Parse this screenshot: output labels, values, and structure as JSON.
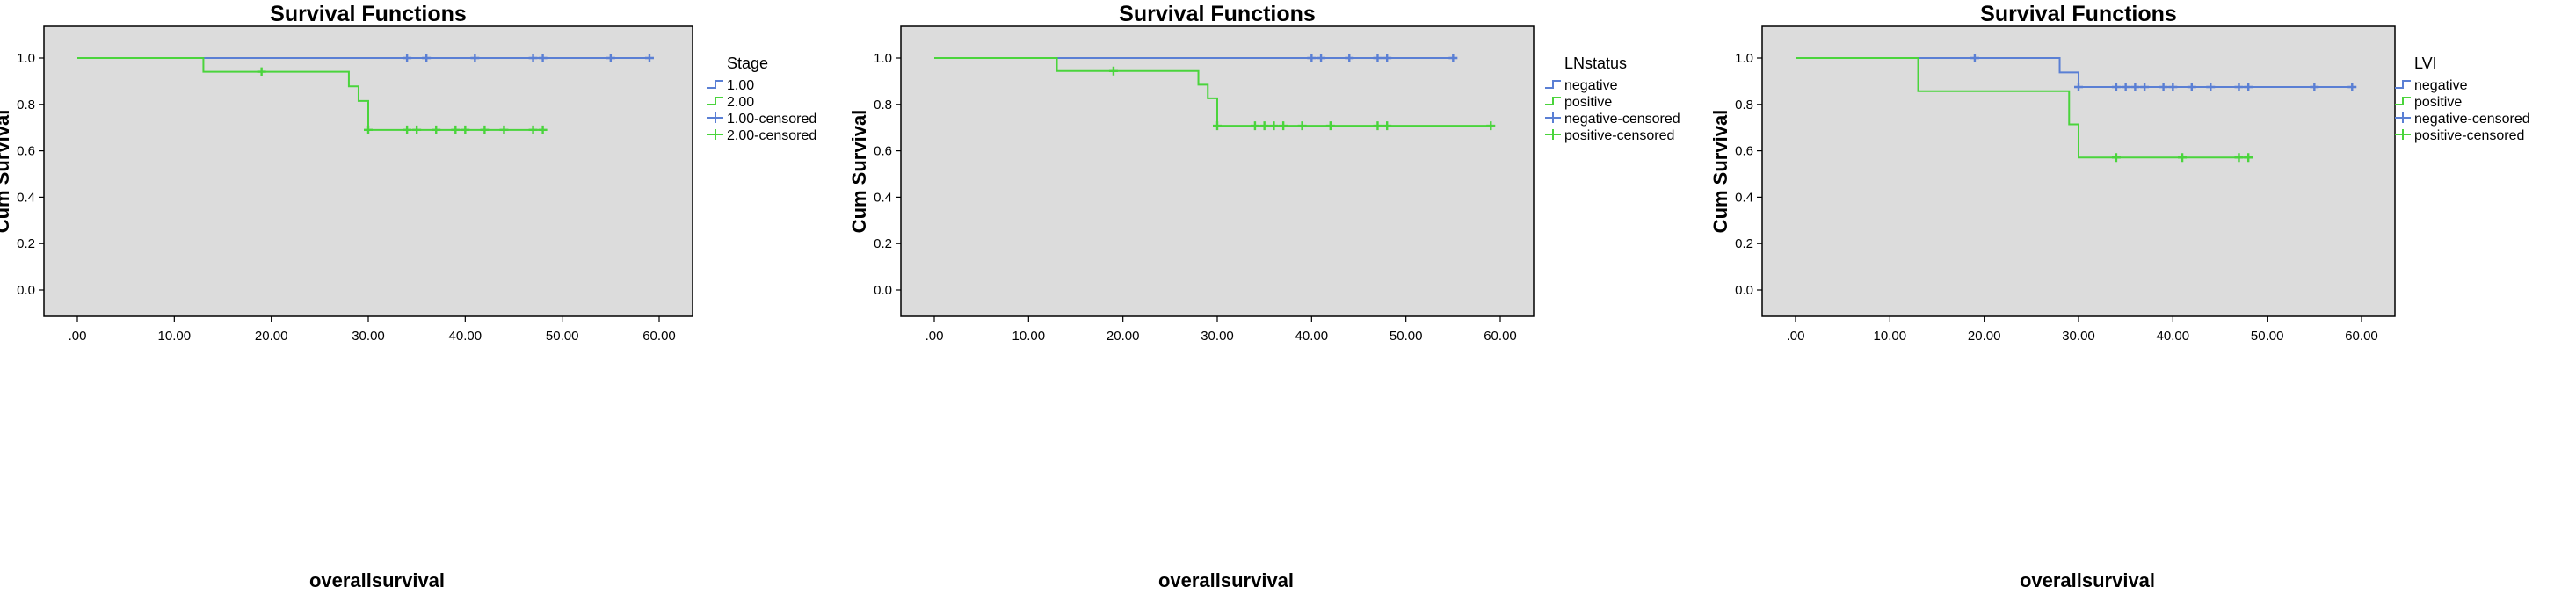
{
  "colors": {
    "plot_background": "#dcdcdc",
    "series_1": "#5a7fd4",
    "series_2": "#4ad43c",
    "axis": "#000000"
  },
  "chart_data": [
    {
      "type": "line",
      "title": "Survival Functions",
      "xlabel": "overallsurvival",
      "ylabel": "Cum Survival",
      "xlim": [
        0,
        60
      ],
      "ylim": [
        0,
        1
      ],
      "x_tick_labels": [
        ".00",
        "10.00",
        "20.00",
        "30.00",
        "40.00",
        "50.00",
        "60.00"
      ],
      "y_tick_labels": [
        "0.0",
        "0.2",
        "0.4",
        "0.6",
        "0.8",
        "1.0"
      ],
      "grid": false,
      "step": true,
      "legend_title": "Stage",
      "legend_position": "right",
      "legend": [
        {
          "label": "1.00",
          "series": 0,
          "kind": "line"
        },
        {
          "label": "2.00",
          "series": 1,
          "kind": "line"
        },
        {
          "label": "1.00-censored",
          "series": 0,
          "kind": "censored"
        },
        {
          "label": "2.00-censored",
          "series": 1,
          "kind": "censored"
        }
      ],
      "series": [
        {
          "x": [
            0,
            59
          ],
          "y": [
            1.0,
            1.0
          ],
          "censored": [
            34,
            36,
            41,
            47,
            48,
            55,
            59
          ],
          "censored_y": [
            1.0,
            1.0,
            1.0,
            1.0,
            1.0,
            1.0,
            1.0
          ]
        },
        {
          "x": [
            0,
            13,
            28,
            29,
            30,
            48
          ],
          "y": [
            1.0,
            0.941,
            0.878,
            0.815,
            0.69,
            0.69
          ],
          "censored": [
            19,
            30,
            34,
            35,
            37,
            39,
            40,
            42,
            44,
            47,
            48
          ],
          "censored_y": [
            0.941,
            0.69,
            0.69,
            0.69,
            0.69,
            0.69,
            0.69,
            0.69,
            0.69,
            0.69,
            0.69
          ]
        }
      ]
    },
    {
      "type": "line",
      "title": "Survival Functions",
      "xlabel": "overallsurvival",
      "ylabel": "Cum Survival",
      "xlim": [
        0,
        60
      ],
      "ylim": [
        0,
        1
      ],
      "x_tick_labels": [
        ".00",
        "10.00",
        "20.00",
        "30.00",
        "40.00",
        "50.00",
        "60.00"
      ],
      "y_tick_labels": [
        "0.0",
        "0.2",
        "0.4",
        "0.6",
        "0.8",
        "1.0"
      ],
      "grid": false,
      "step": true,
      "legend_title": "LNstatus",
      "legend_position": "right",
      "legend": [
        {
          "label": "negative",
          "series": 0,
          "kind": "line"
        },
        {
          "label": "positive",
          "series": 1,
          "kind": "line"
        },
        {
          "label": "negative-censored",
          "series": 0,
          "kind": "censored"
        },
        {
          "label": "positive-censored",
          "series": 1,
          "kind": "censored"
        }
      ],
      "series": [
        {
          "x": [
            0,
            55
          ],
          "y": [
            1.0,
            1.0
          ],
          "censored": [
            40,
            41,
            44,
            47,
            48,
            55
          ],
          "censored_y": [
            1.0,
            1.0,
            1.0,
            1.0,
            1.0,
            1.0
          ]
        },
        {
          "x": [
            0,
            13,
            28,
            29,
            30,
            59
          ],
          "y": [
            1.0,
            0.944,
            0.885,
            0.826,
            0.708,
            0.708
          ],
          "censored": [
            19,
            30,
            34,
            35,
            36,
            37,
            39,
            42,
            47,
            48,
            59
          ],
          "censored_y": [
            0.944,
            0.708,
            0.708,
            0.708,
            0.708,
            0.708,
            0.708,
            0.708,
            0.708,
            0.708,
            0.708
          ]
        }
      ]
    },
    {
      "type": "line",
      "title": "Survival Functions",
      "xlabel": "overallsurvival",
      "ylabel": "Cum Survival",
      "xlim": [
        0,
        60
      ],
      "ylim": [
        0,
        1
      ],
      "x_tick_labels": [
        ".00",
        "10.00",
        "20.00",
        "30.00",
        "40.00",
        "50.00",
        "60.00"
      ],
      "y_tick_labels": [
        "0.0",
        "0.2",
        "0.4",
        "0.6",
        "0.8",
        "1.0"
      ],
      "grid": false,
      "step": true,
      "legend_title": "LVI",
      "legend_position": "right",
      "legend": [
        {
          "label": "negative",
          "series": 0,
          "kind": "line"
        },
        {
          "label": "positive",
          "series": 1,
          "kind": "line"
        },
        {
          "label": "negative-censored",
          "series": 0,
          "kind": "censored"
        },
        {
          "label": "positive-censored",
          "series": 1,
          "kind": "censored"
        }
      ],
      "series": [
        {
          "x": [
            0,
            28,
            30,
            59
          ],
          "y": [
            1.0,
            0.938,
            0.875,
            0.875
          ],
          "censored": [
            19,
            30,
            34,
            35,
            36,
            37,
            39,
            40,
            42,
            44,
            47,
            48,
            55,
            59
          ],
          "censored_y": [
            1.0,
            0.875,
            0.875,
            0.875,
            0.875,
            0.875,
            0.875,
            0.875,
            0.875,
            0.875,
            0.875,
            0.875,
            0.875,
            0.875
          ]
        },
        {
          "x": [
            0,
            13,
            29,
            30,
            48
          ],
          "y": [
            1.0,
            0.857,
            0.714,
            0.571,
            0.571
          ],
          "censored": [
            34,
            41,
            47,
            48
          ],
          "censored_y": [
            0.571,
            0.571,
            0.571,
            0.571
          ]
        }
      ]
    }
  ]
}
